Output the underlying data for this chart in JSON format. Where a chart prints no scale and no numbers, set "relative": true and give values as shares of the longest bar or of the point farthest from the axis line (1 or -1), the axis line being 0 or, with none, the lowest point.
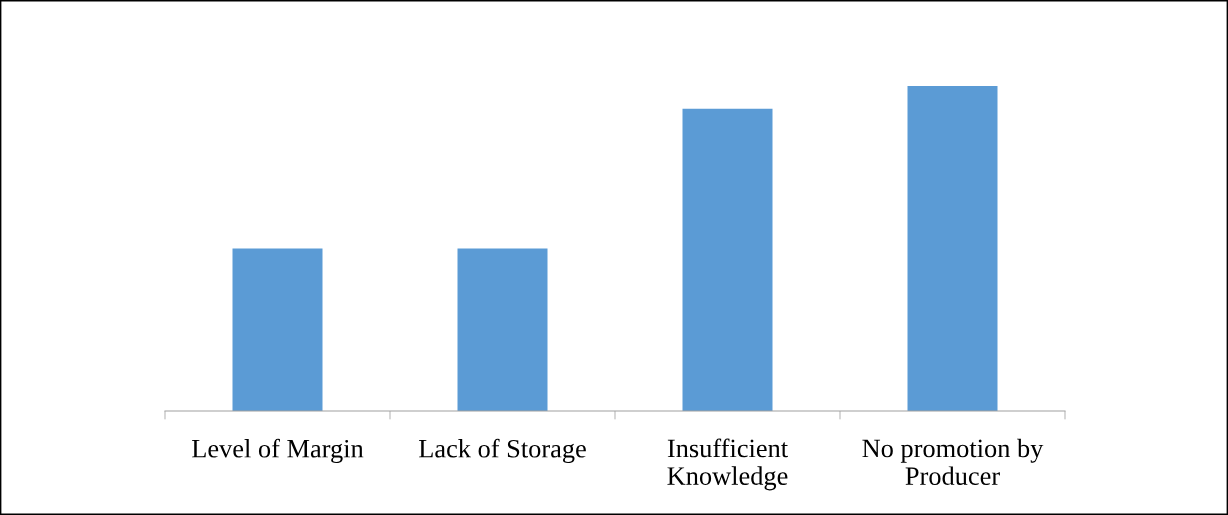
{
  "chart_data": {
    "type": "bar",
    "relative": true,
    "categories": [
      "Level of Margin",
      "Lack of Storage",
      "Insufficient Knowledge",
      "No promotion by Producer"
    ],
    "values": [
      0.5,
      0.5,
      0.93,
      1
    ],
    "color": "#5b9bd5",
    "grid": false,
    "legend": false
  }
}
